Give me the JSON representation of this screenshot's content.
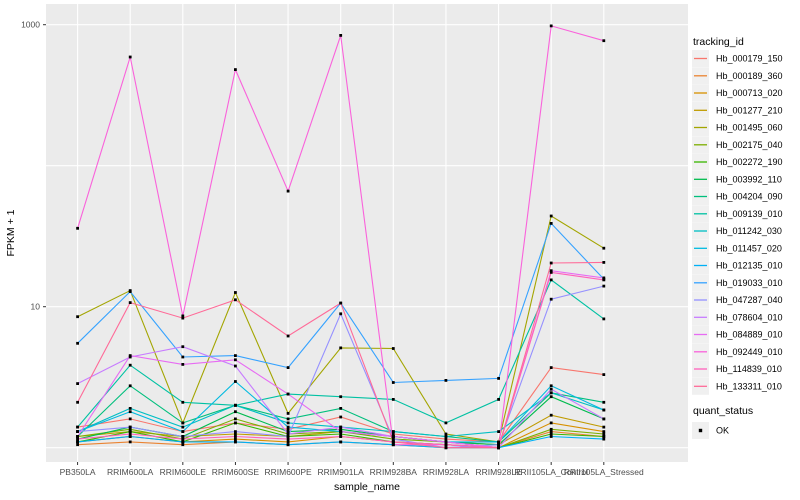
{
  "chart_data": {
    "type": "line",
    "title": "",
    "xlabel": "sample_name",
    "ylabel": "FPKM + 1",
    "yscale": "log10",
    "ylim": [
      0.8,
      1300
    ],
    "grid": true,
    "grid_values": [
      1,
      10,
      100,
      1000
    ],
    "yticks": [
      {
        "value": 1000,
        "label": "1000"
      },
      {
        "value": 10,
        "label": "10"
      }
    ],
    "categories": [
      "PB350LA",
      "RRIM600LA",
      "RRIM600LE",
      "RRIM600SE",
      "RRIM600PE",
      "RRIM901LA",
      "RRIM928BA",
      "RRIM928LA",
      "RRIM928LE",
      "RRII105LA_Control",
      "RRII105LA_Stressed"
    ],
    "legend_title": "tracking_id",
    "legend_position": "right",
    "marker": {
      "shape": "square",
      "color": "#000000"
    },
    "quant_legend": {
      "title": "quant_status",
      "items": [
        "OK"
      ]
    },
    "series": [
      {
        "name": "Hb_000179_150",
        "color": "#F8766D",
        "values": [
          1.4,
          1.6,
          1.3,
          1.5,
          1.35,
          1.65,
          1.25,
          1.15,
          1.1,
          3.7,
          3.3
        ]
      },
      {
        "name": "Hb_000189_360",
        "color": "#EA8331",
        "values": [
          1.05,
          1.1,
          1.05,
          1.1,
          1.05,
          1.1,
          1.05,
          1.0,
          1.0,
          1.3,
          1.2
        ]
      },
      {
        "name": "Hb_000713_020",
        "color": "#D89000",
        "values": [
          1.1,
          1.2,
          1.1,
          1.15,
          1.1,
          1.2,
          1.1,
          1.05,
          1.0,
          1.5,
          1.3
        ]
      },
      {
        "name": "Hb_001277_210",
        "color": "#C09B00",
        "values": [
          1.2,
          1.3,
          1.2,
          1.25,
          1.2,
          1.3,
          1.2,
          1.1,
          1.05,
          1.7,
          1.4
        ]
      },
      {
        "name": "Hb_001495_060",
        "color": "#A3A500",
        "values": [
          8.5,
          13.0,
          1.5,
          12.6,
          1.75,
          5.1,
          5.05,
          1.25,
          1.1,
          44,
          26
        ]
      },
      {
        "name": "Hb_002175_040",
        "color": "#7CAE00",
        "values": [
          1.2,
          1.35,
          1.15,
          1.6,
          1.25,
          1.3,
          1.15,
          1.1,
          1.0,
          1.35,
          1.25
        ]
      },
      {
        "name": "Hb_002272_190",
        "color": "#39B600",
        "values": [
          1.1,
          1.3,
          1.1,
          1.5,
          1.2,
          1.25,
          1.1,
          1.05,
          1.0,
          1.25,
          1.2
        ]
      },
      {
        "name": "Hb_003992_110",
        "color": "#00BB4E",
        "values": [
          1.15,
          1.4,
          1.2,
          1.8,
          1.3,
          1.35,
          1.2,
          1.1,
          1.05,
          2.3,
          1.6
        ]
      },
      {
        "name": "Hb_004204_090",
        "color": "#00BF7D",
        "values": [
          1.2,
          2.75,
          1.5,
          2.0,
          1.6,
          1.9,
          1.3,
          1.2,
          1.1,
          2.45,
          2.1
        ]
      },
      {
        "name": "Hb_009139_010",
        "color": "#00C1A3",
        "values": [
          1.4,
          3.85,
          2.1,
          2.0,
          2.4,
          2.3,
          2.2,
          1.5,
          2.2,
          15.5,
          8.2
        ]
      },
      {
        "name": "Hb_011242_030",
        "color": "#00BFC4",
        "values": [
          1.3,
          1.9,
          1.4,
          2.0,
          1.5,
          1.4,
          1.3,
          1.2,
          1.3,
          2.45,
          1.85
        ]
      },
      {
        "name": "Hb_011457_020",
        "color": "#00BAE0",
        "values": [
          1.3,
          1.8,
          1.3,
          2.95,
          1.4,
          1.3,
          1.2,
          1.1,
          1.1,
          2.75,
          1.85
        ]
      },
      {
        "name": "Hb_012135_010",
        "color": "#00B0F6",
        "values": [
          1.1,
          1.2,
          1.1,
          1.1,
          1.05,
          1.1,
          1.05,
          1.0,
          1.0,
          1.2,
          1.15
        ]
      },
      {
        "name": "Hb_019033_010",
        "color": "#35A2FF",
        "values": [
          5.5,
          12.8,
          4.4,
          4.5,
          3.7,
          10.6,
          2.9,
          3.0,
          3.1,
          39,
          15.7
        ]
      },
      {
        "name": "Hb_047287_040",
        "color": "#9590FF",
        "values": [
          1.3,
          1.4,
          1.2,
          1.3,
          1.2,
          8.9,
          1.15,
          1.0,
          1.05,
          11.3,
          14.0
        ]
      },
      {
        "name": "Hb_078604_010",
        "color": "#C77CFF",
        "values": [
          2.85,
          4.4,
          5.2,
          3.8,
          1.25,
          1.4,
          1.2,
          1.1,
          1.0,
          2.6,
          1.6
        ]
      },
      {
        "name": "Hb_084889_010",
        "color": "#E76BF3",
        "values": [
          1.2,
          4.5,
          3.9,
          4.2,
          2.4,
          1.3,
          1.2,
          1.1,
          1.0,
          18,
          16
        ]
      },
      {
        "name": "Hb_092449_010",
        "color": "#FA62DB",
        "values": [
          36,
          590,
          8.6,
          480,
          66,
          840,
          1.05,
          1.05,
          1.0,
          980,
          770
        ]
      },
      {
        "name": "Hb_114839_010",
        "color": "#FF62BC",
        "values": [
          1.15,
          1.25,
          1.15,
          1.2,
          1.15,
          1.2,
          1.1,
          1.05,
          1.0,
          17.5,
          15.5
        ]
      },
      {
        "name": "Hb_133311_010",
        "color": "#FF6A98",
        "values": [
          2.1,
          10.7,
          8.3,
          11.2,
          6.2,
          10.6,
          1.1,
          1.0,
          1.0,
          20.4,
          20.6
        ]
      }
    ]
  },
  "colors": {
    "panel_background": "#EBEBEB",
    "gridline": "#FFFFFF",
    "tick_mark": "#333333",
    "tick_label": "#4D4D4D",
    "title_text": "#000000",
    "legend_key_background": "#F0F0F0",
    "point": "#000000"
  }
}
